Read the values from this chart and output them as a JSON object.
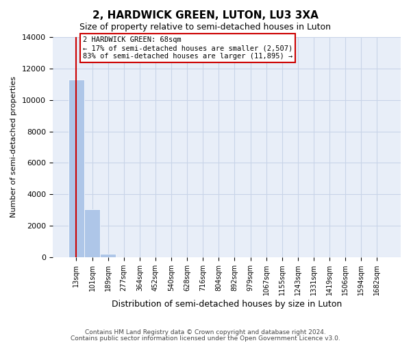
{
  "title": "2, HARDWICK GREEN, LUTON, LU3 3XA",
  "subtitle": "Size of property relative to semi-detached houses in Luton",
  "xlabel": "Distribution of semi-detached houses by size in Luton",
  "ylabel": "Number of semi-detached properties",
  "bin_labels": [
    "13sqm",
    "101sqm",
    "189sqm",
    "277sqm",
    "364sqm",
    "452sqm",
    "540sqm",
    "628sqm",
    "716sqm",
    "804sqm",
    "892sqm",
    "979sqm",
    "1067sqm",
    "1155sqm",
    "1243sqm",
    "1331sqm",
    "1419sqm",
    "1506sqm",
    "1594sqm",
    "1682sqm"
  ],
  "bar_values": [
    11300,
    3050,
    200,
    0,
    0,
    0,
    0,
    0,
    0,
    0,
    0,
    0,
    0,
    0,
    0,
    0,
    0,
    0,
    0,
    0
  ],
  "bar_color": "#aec6e8",
  "property_bin_index": 0,
  "annotation_line1": "2 HARDWICK GREEN: 68sqm",
  "annotation_line2": "← 17% of semi-detached houses are smaller (2,507)",
  "annotation_line3": "83% of semi-detached houses are larger (11,895) →",
  "vline_color": "#cc0000",
  "annotation_box_color": "#cc0000",
  "ylim": [
    0,
    14000
  ],
  "yticks": [
    0,
    2000,
    4000,
    6000,
    8000,
    10000,
    12000,
    14000
  ],
  "grid_color": "#c8d4e8",
  "background_color": "#e8eef8",
  "footer_line1": "Contains HM Land Registry data © Crown copyright and database right 2024.",
  "footer_line2": "Contains public sector information licensed under the Open Government Licence v3.0."
}
